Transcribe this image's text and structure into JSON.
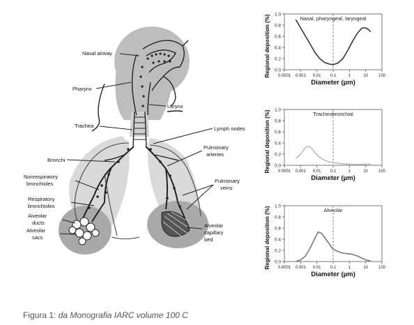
{
  "anatomy": {
    "labels": {
      "nasal_airway": "Nasal airway",
      "pharynx": "Pharynx",
      "larynx": "Larynx",
      "trachea": "Trachea",
      "lymph_nodes": "Lymph nodes",
      "pulmonary_arteries": [
        "Pulmonary",
        "arteries"
      ],
      "bronchi": "Bronchi",
      "nonrespiratory_bronchioles": [
        "Nonrespiratory",
        "bronchioles"
      ],
      "pulmonary_veins": [
        "Pulmonary",
        "veins"
      ],
      "respiratory_bronchioles": [
        "Respiratory",
        "bronchioles"
      ],
      "alveolar_ducts": [
        "Alveolar",
        "ducts"
      ],
      "alveolar_sacs": [
        "Alveolar",
        "sacs"
      ],
      "alveolar_capillary_bed": [
        "Alveolar",
        "capillary",
        "bed"
      ]
    }
  },
  "chart_data": [
    {
      "type": "line",
      "title": "Nasal, pharyngeal, laryngeal",
      "xlabel": "Diameter (µm)",
      "ylabel": "Regional deposition (%)",
      "x_scale": "log",
      "x_ticks": [
        "0.0001",
        "0.001",
        "0.01",
        "0.1",
        "1",
        "10",
        "100"
      ],
      "y_ticks": [
        "0.0",
        "0.2",
        "0.4",
        "0.6",
        "0.8",
        "1.0"
      ],
      "ylim": [
        0,
        1
      ],
      "reference_line_x": 0.1,
      "color": "#333333",
      "x": [
        0.0005,
        0.001,
        0.002,
        0.004,
        0.008,
        0.015,
        0.03,
        0.06,
        0.1,
        0.2,
        0.4,
        0.8,
        1.5,
        3,
        6,
        10,
        15,
        20
      ],
      "values": [
        0.9,
        0.75,
        0.6,
        0.45,
        0.3,
        0.2,
        0.13,
        0.1,
        0.09,
        0.12,
        0.2,
        0.35,
        0.5,
        0.65,
        0.75,
        0.75,
        0.72,
        0.68
      ]
    },
    {
      "type": "line",
      "title": "Tracheobronchial",
      "xlabel": "Diameter (µm)",
      "ylabel": "Regional deposition (%)",
      "x_scale": "log",
      "x_ticks": [
        "0.0001",
        "0.001",
        "0.01",
        "0.1",
        "1",
        "10",
        "100"
      ],
      "y_ticks": [
        "0.0",
        "0.2",
        "0.4",
        "0.6",
        "0.8",
        "1.0"
      ],
      "ylim": [
        0,
        1
      ],
      "reference_line_x": 0.1,
      "color": "#bbbbbb",
      "x": [
        0.0005,
        0.001,
        0.002,
        0.003,
        0.005,
        0.008,
        0.015,
        0.03,
        0.06,
        0.1,
        0.3,
        1,
        3,
        10,
        20
      ],
      "values": [
        0.12,
        0.2,
        0.32,
        0.34,
        0.3,
        0.22,
        0.14,
        0.09,
        0.06,
        0.05,
        0.03,
        0.02,
        0.015,
        0.02,
        0.02
      ]
    },
    {
      "type": "line",
      "title": "Alveolar",
      "xlabel": "Diameter (µm)",
      "ylabel": "Regional deposition (%)",
      "x_scale": "log",
      "x_ticks": [
        "0.0001",
        "0.001",
        "0.01",
        "0.1",
        "1",
        "10",
        "100"
      ],
      "y_ticks": [
        "0.0",
        "0.2",
        "0.4",
        "0.6",
        "0.8",
        "1.0"
      ],
      "ylim": [
        0,
        1
      ],
      "reference_line_x": 0.1,
      "color": "#777777",
      "x": [
        0.0005,
        0.001,
        0.002,
        0.004,
        0.007,
        0.012,
        0.02,
        0.04,
        0.07,
        0.1,
        0.2,
        0.4,
        0.8,
        1.5,
        3,
        6,
        10,
        20
      ],
      "values": [
        0.0,
        0.03,
        0.1,
        0.25,
        0.4,
        0.53,
        0.5,
        0.38,
        0.28,
        0.22,
        0.18,
        0.15,
        0.14,
        0.13,
        0.1,
        0.06,
        0.03,
        0.01
      ]
    }
  ],
  "caption": {
    "prefix": "Figura 1: ",
    "source": "da Monografia IARC volume 100 C"
  }
}
